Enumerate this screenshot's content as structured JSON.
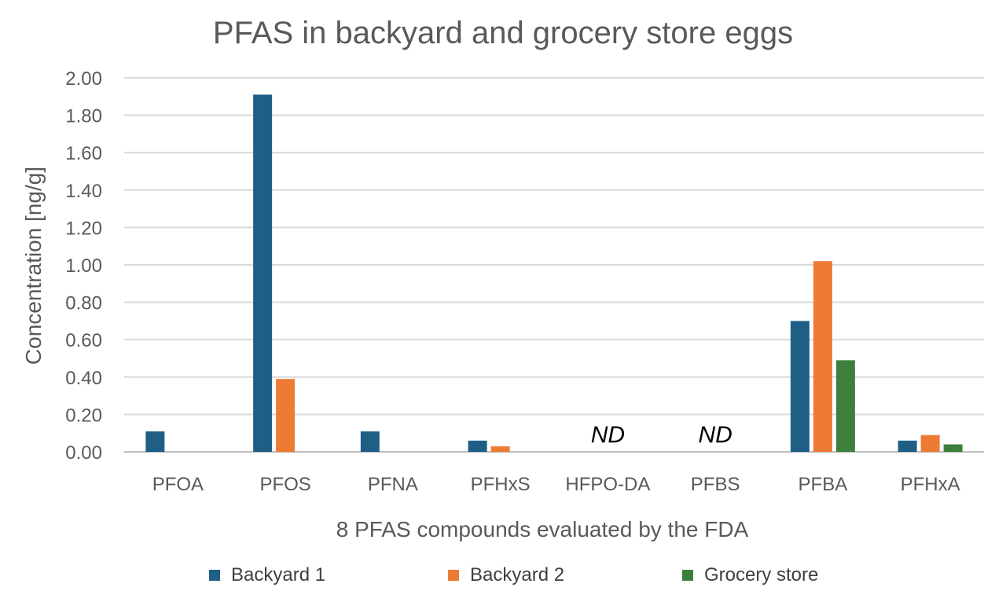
{
  "chart_data": {
    "type": "bar",
    "title": "PFAS in backyard and grocery store eggs",
    "xlabel": "8 PFAS compounds evaluated by the FDA",
    "ylabel": "Concentration [ng/g]",
    "ylim": [
      0,
      2
    ],
    "yticks": [
      "0.00",
      "0.20",
      "0.40",
      "0.60",
      "0.80",
      "1.00",
      "1.20",
      "1.40",
      "1.60",
      "1.80",
      "2.00"
    ],
    "grid": true,
    "legend_position": "bottom",
    "categories": [
      "PFOA",
      "PFOS",
      "PFNA",
      "PFHxS",
      "HFPO-DA",
      "PFBS",
      "PFBA",
      "PFHxA"
    ],
    "series": [
      {
        "name": "Backyard 1",
        "color": "#1f5f86",
        "values": [
          0.11,
          1.91,
          0.11,
          0.06,
          0,
          0,
          0.7,
          0.06
        ]
      },
      {
        "name": "Backyard 2",
        "color": "#ee7b34",
        "values": [
          0,
          0.39,
          0,
          0.03,
          0,
          0,
          1.02,
          0.09
        ]
      },
      {
        "name": "Grocery store",
        "color": "#3d7f3d",
        "values": [
          0,
          0,
          0,
          0,
          0,
          0,
          0.49,
          0.04
        ]
      }
    ],
    "annotations": [
      {
        "category": "HFPO-DA",
        "text": "ND"
      },
      {
        "category": "PFBS",
        "text": "ND"
      }
    ]
  }
}
